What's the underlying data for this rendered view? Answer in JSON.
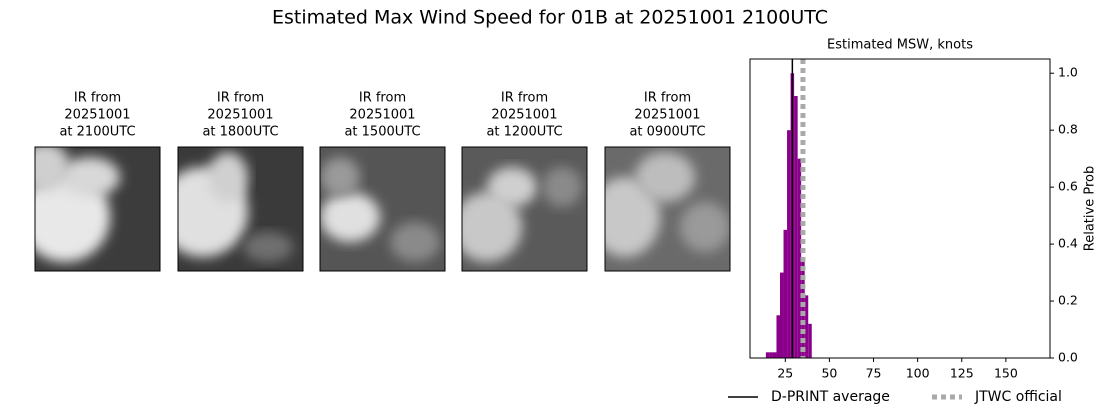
{
  "title": "Estimated Max Wind Speed for 01B at 20251001 2100UTC",
  "panels": [
    {
      "label": [
        "IR from",
        "20251001",
        "at 2100UTC"
      ]
    },
    {
      "label": [
        "IR from",
        "20251001",
        "at 1800UTC"
      ]
    },
    {
      "label": [
        "IR from",
        "20251001",
        "at 1500UTC"
      ]
    },
    {
      "label": [
        "IR from",
        "20251001",
        "at 1200UTC"
      ]
    },
    {
      "label": [
        "IR from",
        "20251001",
        "at 0900UTC"
      ]
    }
  ],
  "chart_data": {
    "type": "histogram",
    "title": "Estimated MSW, knots",
    "ylabel": "Relative Prob",
    "bins": [
      14,
      16,
      18,
      20,
      22,
      24,
      26,
      28,
      30,
      32,
      34,
      36,
      38,
      40
    ],
    "values": [
      0.02,
      0.02,
      0.02,
      0.15,
      0.3,
      0.45,
      0.8,
      1.0,
      0.92,
      0.7,
      0.35,
      0.22,
      0.12
    ],
    "color": "#8b008b",
    "xlim": [
      5,
      175
    ],
    "xticks": [
      25,
      50,
      75,
      100,
      125,
      150
    ],
    "ylim": [
      0,
      1.05
    ],
    "yticks": [
      {
        "value": 0,
        "label": "0.0"
      },
      {
        "value": 0.2,
        "label": "0.2"
      },
      {
        "value": 0.4,
        "label": "0.4"
      },
      {
        "value": 0.6,
        "label": "0.6"
      },
      {
        "value": 0.8,
        "label": "0.8"
      },
      {
        "value": 1,
        "label": "1.0"
      }
    ],
    "lines": [
      {
        "name": "D-PRINT average",
        "value": 29,
        "color": "#000000",
        "style": "solid"
      },
      {
        "name": "JTWC official",
        "value": 35,
        "color": "#aaaaaa",
        "style": "dotted"
      }
    ]
  }
}
